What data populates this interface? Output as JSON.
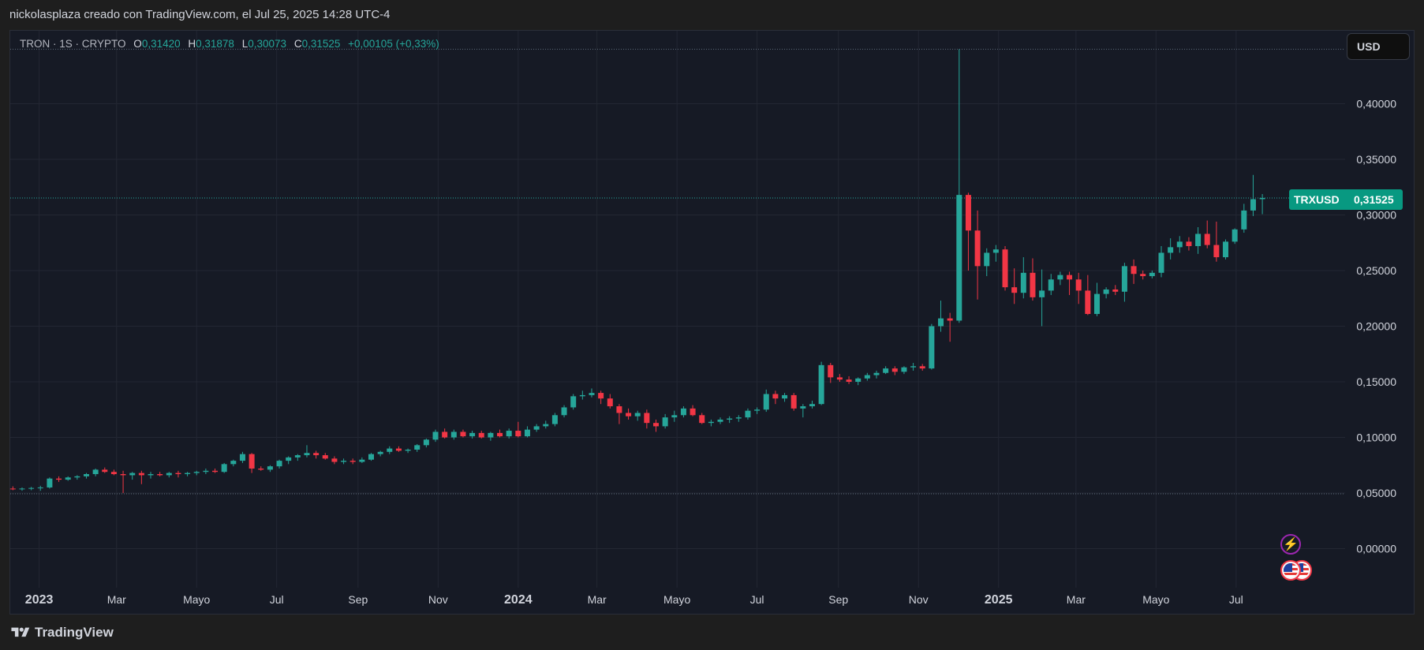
{
  "caption": "nickolasplaza creado con TradingView.com, el Jul 25, 2025 14:28 UTC-4",
  "legend": {
    "symbol": "TRON · 1S · CRYPTO",
    "open_label": "O",
    "open": "0,31420",
    "high_label": "H",
    "high": "0,31878",
    "low_label": "L",
    "low": "0,30073",
    "close_label": "C",
    "close": "0,31525",
    "change": "+0,00105 (+0,33%)"
  },
  "currency_button": "USD",
  "price_badge": {
    "symbol": "TRXUSD",
    "value": "0,31525"
  },
  "brand": "TradingView",
  "icons": {
    "logo": "tradingview-logo-icon",
    "event": "lightning-event-icon",
    "flag": "us-flag-icon"
  },
  "colors": {
    "up": "#26a69a",
    "down": "#f23645",
    "background": "#161a25",
    "grid": "#232733",
    "text": "#d1d4dc",
    "accent": "#089981"
  },
  "chart_data": {
    "type": "candlestick",
    "timeframe": "1W",
    "x_axis_labels": [
      "2023",
      "Mar",
      "Mayo",
      "Jul",
      "Sep",
      "Nov",
      "2024",
      "Mar",
      "Mayo",
      "Jul",
      "Sep",
      "Nov",
      "2025",
      "Mar",
      "Mayo",
      "Jul"
    ],
    "x_axis_dates": [
      "2023-01",
      "2023-03",
      "2023-05",
      "2023-07",
      "2023-09",
      "2023-11",
      "2024-01",
      "2024-03",
      "2024-05",
      "2024-07",
      "2024-09",
      "2024-11",
      "2025-01",
      "2025-03",
      "2025-05",
      "2025-07"
    ],
    "y_ticks": [
      "0,00000",
      "0,05000",
      "0,10000",
      "0,15000",
      "0,20000",
      "0,25000",
      "0,30000",
      "0,35000",
      "0,40000"
    ],
    "ylim": [
      -0.035,
      0.465
    ],
    "xlim": [
      "2022-12-10",
      "2025-08-23"
    ],
    "last_close": 0.31525,
    "series_name": "TRXUSD",
    "reference_lines": [
      0.449,
      0.0493
    ],
    "candles": [
      {
        "t": "2022-12-12",
        "o": 0.054,
        "h": 0.056,
        "l": 0.0525,
        "c": 0.0535
      },
      {
        "t": "2022-12-19",
        "o": 0.0535,
        "h": 0.055,
        "l": 0.052,
        "c": 0.054
      },
      {
        "t": "2022-12-26",
        "o": 0.054,
        "h": 0.0555,
        "l": 0.0525,
        "c": 0.0545
      },
      {
        "t": "2023-01-02",
        "o": 0.0545,
        "h": 0.0565,
        "l": 0.052,
        "c": 0.055
      },
      {
        "t": "2023-01-09",
        "o": 0.055,
        "h": 0.064,
        "l": 0.054,
        "c": 0.063
      },
      {
        "t": "2023-01-16",
        "o": 0.063,
        "h": 0.065,
        "l": 0.06,
        "c": 0.062
      },
      {
        "t": "2023-01-23",
        "o": 0.062,
        "h": 0.065,
        "l": 0.061,
        "c": 0.064
      },
      {
        "t": "2023-01-30",
        "o": 0.064,
        "h": 0.066,
        "l": 0.062,
        "c": 0.065
      },
      {
        "t": "2023-02-06",
        "o": 0.065,
        "h": 0.068,
        "l": 0.063,
        "c": 0.067
      },
      {
        "t": "2023-02-13",
        "o": 0.067,
        "h": 0.072,
        "l": 0.065,
        "c": 0.071
      },
      {
        "t": "2023-02-20",
        "o": 0.071,
        "h": 0.073,
        "l": 0.068,
        "c": 0.069
      },
      {
        "t": "2023-02-27",
        "o": 0.069,
        "h": 0.071,
        "l": 0.066,
        "c": 0.067
      },
      {
        "t": "2023-03-06",
        "o": 0.067,
        "h": 0.07,
        "l": 0.05,
        "c": 0.066
      },
      {
        "t": "2023-03-13",
        "o": 0.066,
        "h": 0.069,
        "l": 0.062,
        "c": 0.068
      },
      {
        "t": "2023-03-20",
        "o": 0.068,
        "h": 0.07,
        "l": 0.058,
        "c": 0.066
      },
      {
        "t": "2023-03-27",
        "o": 0.066,
        "h": 0.069,
        "l": 0.063,
        "c": 0.067
      },
      {
        "t": "2023-04-03",
        "o": 0.067,
        "h": 0.069,
        "l": 0.065,
        "c": 0.066
      },
      {
        "t": "2023-04-10",
        "o": 0.066,
        "h": 0.069,
        "l": 0.064,
        "c": 0.068
      },
      {
        "t": "2023-04-17",
        "o": 0.068,
        "h": 0.07,
        "l": 0.064,
        "c": 0.067
      },
      {
        "t": "2023-04-24",
        "o": 0.067,
        "h": 0.069,
        "l": 0.065,
        "c": 0.068
      },
      {
        "t": "2023-05-01",
        "o": 0.068,
        "h": 0.07,
        "l": 0.066,
        "c": 0.069
      },
      {
        "t": "2023-05-08",
        "o": 0.069,
        "h": 0.072,
        "l": 0.067,
        "c": 0.07
      },
      {
        "t": "2023-05-15",
        "o": 0.07,
        "h": 0.072,
        "l": 0.068,
        "c": 0.069
      },
      {
        "t": "2023-05-22",
        "o": 0.069,
        "h": 0.077,
        "l": 0.068,
        "c": 0.076
      },
      {
        "t": "2023-05-29",
        "o": 0.076,
        "h": 0.08,
        "l": 0.074,
        "c": 0.079
      },
      {
        "t": "2023-06-05",
        "o": 0.079,
        "h": 0.087,
        "l": 0.077,
        "c": 0.085
      },
      {
        "t": "2023-06-12",
        "o": 0.085,
        "h": 0.086,
        "l": 0.068,
        "c": 0.072
      },
      {
        "t": "2023-06-19",
        "o": 0.072,
        "h": 0.074,
        "l": 0.07,
        "c": 0.071
      },
      {
        "t": "2023-06-26",
        "o": 0.071,
        "h": 0.075,
        "l": 0.069,
        "c": 0.074
      },
      {
        "t": "2023-07-03",
        "o": 0.074,
        "h": 0.08,
        "l": 0.072,
        "c": 0.079
      },
      {
        "t": "2023-07-10",
        "o": 0.079,
        "h": 0.083,
        "l": 0.076,
        "c": 0.082
      },
      {
        "t": "2023-07-17",
        "o": 0.082,
        "h": 0.085,
        "l": 0.079,
        "c": 0.084
      },
      {
        "t": "2023-07-24",
        "o": 0.084,
        "h": 0.093,
        "l": 0.082,
        "c": 0.086
      },
      {
        "t": "2023-07-31",
        "o": 0.086,
        "h": 0.088,
        "l": 0.081,
        "c": 0.084
      },
      {
        "t": "2023-08-07",
        "o": 0.084,
        "h": 0.086,
        "l": 0.08,
        "c": 0.081
      },
      {
        "t": "2023-08-14",
        "o": 0.081,
        "h": 0.083,
        "l": 0.076,
        "c": 0.078
      },
      {
        "t": "2023-08-21",
        "o": 0.078,
        "h": 0.081,
        "l": 0.076,
        "c": 0.079
      },
      {
        "t": "2023-08-28",
        "o": 0.079,
        "h": 0.081,
        "l": 0.076,
        "c": 0.078
      },
      {
        "t": "2023-09-04",
        "o": 0.078,
        "h": 0.082,
        "l": 0.077,
        "c": 0.08
      },
      {
        "t": "2023-09-11",
        "o": 0.08,
        "h": 0.086,
        "l": 0.079,
        "c": 0.085
      },
      {
        "t": "2023-09-18",
        "o": 0.085,
        "h": 0.088,
        "l": 0.083,
        "c": 0.087
      },
      {
        "t": "2023-09-25",
        "o": 0.087,
        "h": 0.092,
        "l": 0.085,
        "c": 0.09
      },
      {
        "t": "2023-10-02",
        "o": 0.09,
        "h": 0.092,
        "l": 0.087,
        "c": 0.088
      },
      {
        "t": "2023-10-09",
        "o": 0.088,
        "h": 0.09,
        "l": 0.086,
        "c": 0.089
      },
      {
        "t": "2023-10-16",
        "o": 0.089,
        "h": 0.094,
        "l": 0.087,
        "c": 0.093
      },
      {
        "t": "2023-10-23",
        "o": 0.093,
        "h": 0.099,
        "l": 0.091,
        "c": 0.098
      },
      {
        "t": "2023-10-30",
        "o": 0.098,
        "h": 0.107,
        "l": 0.096,
        "c": 0.105
      },
      {
        "t": "2023-11-06",
        "o": 0.105,
        "h": 0.108,
        "l": 0.099,
        "c": 0.1
      },
      {
        "t": "2023-11-13",
        "o": 0.1,
        "h": 0.107,
        "l": 0.098,
        "c": 0.105
      },
      {
        "t": "2023-11-20",
        "o": 0.105,
        "h": 0.107,
        "l": 0.1,
        "c": 0.101
      },
      {
        "t": "2023-11-27",
        "o": 0.101,
        "h": 0.106,
        "l": 0.099,
        "c": 0.104
      },
      {
        "t": "2023-12-04",
        "o": 0.104,
        "h": 0.106,
        "l": 0.099,
        "c": 0.1
      },
      {
        "t": "2023-12-11",
        "o": 0.1,
        "h": 0.105,
        "l": 0.097,
        "c": 0.104
      },
      {
        "t": "2023-12-18",
        "o": 0.104,
        "h": 0.107,
        "l": 0.1,
        "c": 0.101
      },
      {
        "t": "2023-12-25",
        "o": 0.101,
        "h": 0.108,
        "l": 0.099,
        "c": 0.106
      },
      {
        "t": "2024-01-01",
        "o": 0.106,
        "h": 0.114,
        "l": 0.1,
        "c": 0.101
      },
      {
        "t": "2024-01-08",
        "o": 0.101,
        "h": 0.11,
        "l": 0.1,
        "c": 0.107
      },
      {
        "t": "2024-01-15",
        "o": 0.107,
        "h": 0.112,
        "l": 0.105,
        "c": 0.11
      },
      {
        "t": "2024-01-22",
        "o": 0.11,
        "h": 0.115,
        "l": 0.108,
        "c": 0.112
      },
      {
        "t": "2024-01-29",
        "o": 0.112,
        "h": 0.122,
        "l": 0.11,
        "c": 0.12
      },
      {
        "t": "2024-02-05",
        "o": 0.12,
        "h": 0.129,
        "l": 0.118,
        "c": 0.127
      },
      {
        "t": "2024-02-12",
        "o": 0.127,
        "h": 0.139,
        "l": 0.125,
        "c": 0.137
      },
      {
        "t": "2024-02-19",
        "o": 0.137,
        "h": 0.142,
        "l": 0.134,
        "c": 0.138
      },
      {
        "t": "2024-02-26",
        "o": 0.138,
        "h": 0.144,
        "l": 0.136,
        "c": 0.14
      },
      {
        "t": "2024-03-04",
        "o": 0.14,
        "h": 0.142,
        "l": 0.13,
        "c": 0.135
      },
      {
        "t": "2024-03-11",
        "o": 0.135,
        "h": 0.139,
        "l": 0.126,
        "c": 0.128
      },
      {
        "t": "2024-03-18",
        "o": 0.128,
        "h": 0.13,
        "l": 0.112,
        "c": 0.122
      },
      {
        "t": "2024-03-25",
        "o": 0.122,
        "h": 0.126,
        "l": 0.116,
        "c": 0.119
      },
      {
        "t": "2024-04-01",
        "o": 0.119,
        "h": 0.124,
        "l": 0.115,
        "c": 0.122
      },
      {
        "t": "2024-04-08",
        "o": 0.122,
        "h": 0.125,
        "l": 0.108,
        "c": 0.113
      },
      {
        "t": "2024-04-15",
        "o": 0.113,
        "h": 0.116,
        "l": 0.105,
        "c": 0.11
      },
      {
        "t": "2024-04-22",
        "o": 0.11,
        "h": 0.121,
        "l": 0.108,
        "c": 0.118
      },
      {
        "t": "2024-04-29",
        "o": 0.118,
        "h": 0.124,
        "l": 0.114,
        "c": 0.12
      },
      {
        "t": "2024-05-06",
        "o": 0.12,
        "h": 0.128,
        "l": 0.118,
        "c": 0.126
      },
      {
        "t": "2024-05-13",
        "o": 0.126,
        "h": 0.129,
        "l": 0.119,
        "c": 0.12
      },
      {
        "t": "2024-05-20",
        "o": 0.12,
        "h": 0.122,
        "l": 0.112,
        "c": 0.113
      },
      {
        "t": "2024-05-27",
        "o": 0.113,
        "h": 0.116,
        "l": 0.11,
        "c": 0.114
      },
      {
        "t": "2024-06-03",
        "o": 0.114,
        "h": 0.118,
        "l": 0.112,
        "c": 0.116
      },
      {
        "t": "2024-06-10",
        "o": 0.116,
        "h": 0.119,
        "l": 0.113,
        "c": 0.117
      },
      {
        "t": "2024-06-17",
        "o": 0.117,
        "h": 0.12,
        "l": 0.114,
        "c": 0.118
      },
      {
        "t": "2024-06-24",
        "o": 0.118,
        "h": 0.126,
        "l": 0.116,
        "c": 0.124
      },
      {
        "t": "2024-07-01",
        "o": 0.124,
        "h": 0.127,
        "l": 0.121,
        "c": 0.125
      },
      {
        "t": "2024-07-08",
        "o": 0.125,
        "h": 0.143,
        "l": 0.123,
        "c": 0.139
      },
      {
        "t": "2024-07-15",
        "o": 0.139,
        "h": 0.142,
        "l": 0.13,
        "c": 0.135
      },
      {
        "t": "2024-07-22",
        "o": 0.135,
        "h": 0.14,
        "l": 0.132,
        "c": 0.138
      },
      {
        "t": "2024-07-29",
        "o": 0.138,
        "h": 0.14,
        "l": 0.124,
        "c": 0.126
      },
      {
        "t": "2024-08-05",
        "o": 0.126,
        "h": 0.13,
        "l": 0.118,
        "c": 0.128
      },
      {
        "t": "2024-08-12",
        "o": 0.128,
        "h": 0.133,
        "l": 0.126,
        "c": 0.13
      },
      {
        "t": "2024-08-19",
        "o": 0.13,
        "h": 0.168,
        "l": 0.129,
        "c": 0.165
      },
      {
        "t": "2024-08-26",
        "o": 0.165,
        "h": 0.167,
        "l": 0.149,
        "c": 0.154
      },
      {
        "t": "2024-09-02",
        "o": 0.154,
        "h": 0.157,
        "l": 0.15,
        "c": 0.152
      },
      {
        "t": "2024-09-09",
        "o": 0.152,
        "h": 0.155,
        "l": 0.148,
        "c": 0.15
      },
      {
        "t": "2024-09-16",
        "o": 0.15,
        "h": 0.154,
        "l": 0.147,
        "c": 0.153
      },
      {
        "t": "2024-09-23",
        "o": 0.153,
        "h": 0.158,
        "l": 0.151,
        "c": 0.156
      },
      {
        "t": "2024-09-30",
        "o": 0.156,
        "h": 0.16,
        "l": 0.153,
        "c": 0.158
      },
      {
        "t": "2024-10-07",
        "o": 0.158,
        "h": 0.164,
        "l": 0.157,
        "c": 0.162
      },
      {
        "t": "2024-10-14",
        "o": 0.162,
        "h": 0.164,
        "l": 0.156,
        "c": 0.159
      },
      {
        "t": "2024-10-21",
        "o": 0.159,
        "h": 0.164,
        "l": 0.157,
        "c": 0.163
      },
      {
        "t": "2024-10-28",
        "o": 0.163,
        "h": 0.167,
        "l": 0.16,
        "c": 0.164
      },
      {
        "t": "2024-11-04",
        "o": 0.164,
        "h": 0.166,
        "l": 0.16,
        "c": 0.162
      },
      {
        "t": "2024-11-11",
        "o": 0.162,
        "h": 0.202,
        "l": 0.161,
        "c": 0.2
      },
      {
        "t": "2024-11-18",
        "o": 0.2,
        "h": 0.223,
        "l": 0.195,
        "c": 0.207
      },
      {
        "t": "2024-11-25",
        "o": 0.207,
        "h": 0.212,
        "l": 0.186,
        "c": 0.205
      },
      {
        "t": "2024-12-02",
        "o": 0.205,
        "h": 0.449,
        "l": 0.203,
        "c": 0.318
      },
      {
        "t": "2024-12-09",
        "o": 0.318,
        "h": 0.32,
        "l": 0.25,
        "c": 0.286
      },
      {
        "t": "2024-12-16",
        "o": 0.286,
        "h": 0.304,
        "l": 0.224,
        "c": 0.254
      },
      {
        "t": "2024-12-23",
        "o": 0.254,
        "h": 0.27,
        "l": 0.245,
        "c": 0.266
      },
      {
        "t": "2024-12-30",
        "o": 0.266,
        "h": 0.273,
        "l": 0.258,
        "c": 0.269
      },
      {
        "t": "2025-01-06",
        "o": 0.269,
        "h": 0.272,
        "l": 0.232,
        "c": 0.235
      },
      {
        "t": "2025-01-13",
        "o": 0.235,
        "h": 0.252,
        "l": 0.22,
        "c": 0.23
      },
      {
        "t": "2025-01-20",
        "o": 0.23,
        "h": 0.262,
        "l": 0.225,
        "c": 0.248
      },
      {
        "t": "2025-01-27",
        "o": 0.248,
        "h": 0.261,
        "l": 0.223,
        "c": 0.226
      },
      {
        "t": "2025-02-03",
        "o": 0.226,
        "h": 0.251,
        "l": 0.2,
        "c": 0.232
      },
      {
        "t": "2025-02-10",
        "o": 0.232,
        "h": 0.247,
        "l": 0.228,
        "c": 0.242
      },
      {
        "t": "2025-02-17",
        "o": 0.242,
        "h": 0.249,
        "l": 0.237,
        "c": 0.246
      },
      {
        "t": "2025-02-24",
        "o": 0.246,
        "h": 0.249,
        "l": 0.228,
        "c": 0.242
      },
      {
        "t": "2025-03-03",
        "o": 0.242,
        "h": 0.248,
        "l": 0.22,
        "c": 0.232
      },
      {
        "t": "2025-03-10",
        "o": 0.232,
        "h": 0.246,
        "l": 0.21,
        "c": 0.211
      },
      {
        "t": "2025-03-17",
        "o": 0.211,
        "h": 0.239,
        "l": 0.209,
        "c": 0.229
      },
      {
        "t": "2025-03-24",
        "o": 0.229,
        "h": 0.235,
        "l": 0.225,
        "c": 0.233
      },
      {
        "t": "2025-03-31",
        "o": 0.233,
        "h": 0.237,
        "l": 0.228,
        "c": 0.231
      },
      {
        "t": "2025-04-07",
        "o": 0.231,
        "h": 0.257,
        "l": 0.222,
        "c": 0.254
      },
      {
        "t": "2025-04-14",
        "o": 0.254,
        "h": 0.26,
        "l": 0.238,
        "c": 0.247
      },
      {
        "t": "2025-04-21",
        "o": 0.247,
        "h": 0.25,
        "l": 0.242,
        "c": 0.245
      },
      {
        "t": "2025-04-28",
        "o": 0.245,
        "h": 0.25,
        "l": 0.243,
        "c": 0.248
      },
      {
        "t": "2025-05-05",
        "o": 0.248,
        "h": 0.272,
        "l": 0.244,
        "c": 0.266
      },
      {
        "t": "2025-05-12",
        "o": 0.266,
        "h": 0.279,
        "l": 0.26,
        "c": 0.271
      },
      {
        "t": "2025-05-19",
        "o": 0.271,
        "h": 0.281,
        "l": 0.266,
        "c": 0.276
      },
      {
        "t": "2025-05-26",
        "o": 0.276,
        "h": 0.28,
        "l": 0.268,
        "c": 0.272
      },
      {
        "t": "2025-06-02",
        "o": 0.272,
        "h": 0.289,
        "l": 0.265,
        "c": 0.283
      },
      {
        "t": "2025-06-09",
        "o": 0.283,
        "h": 0.295,
        "l": 0.27,
        "c": 0.273
      },
      {
        "t": "2025-06-16",
        "o": 0.273,
        "h": 0.294,
        "l": 0.258,
        "c": 0.262
      },
      {
        "t": "2025-06-23",
        "o": 0.262,
        "h": 0.278,
        "l": 0.26,
        "c": 0.276
      },
      {
        "t": "2025-06-30",
        "o": 0.276,
        "h": 0.288,
        "l": 0.274,
        "c": 0.287
      },
      {
        "t": "2025-07-07",
        "o": 0.287,
        "h": 0.31,
        "l": 0.284,
        "c": 0.304
      },
      {
        "t": "2025-07-14",
        "o": 0.304,
        "h": 0.336,
        "l": 0.299,
        "c": 0.3142
      },
      {
        "t": "2025-07-21",
        "o": 0.3142,
        "h": 0.3188,
        "l": 0.3007,
        "c": 0.3153
      }
    ]
  }
}
